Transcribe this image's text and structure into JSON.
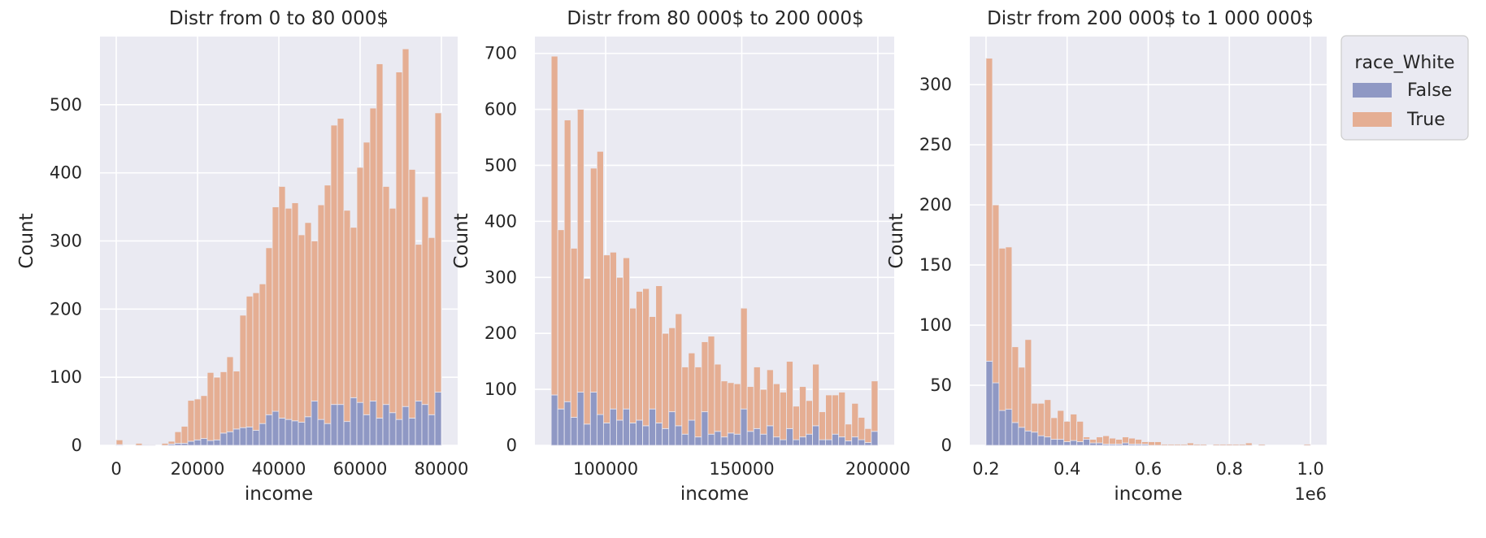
{
  "chart_data": [
    {
      "type": "bar",
      "title": "Distr from 0 to 80 000$",
      "xlabel": "income",
      "ylabel": "Count",
      "xlim": [
        -4000,
        84000
      ],
      "ylim": [
        0,
        600
      ],
      "xticks": [
        0,
        20000,
        40000,
        60000,
        80000
      ],
      "xticklabels": [
        "0",
        "20000",
        "40000",
        "60000",
        "80000"
      ],
      "yticks": [
        0,
        100,
        200,
        300,
        400,
        500
      ],
      "yticklabels": [
        "0",
        "100",
        "200",
        "300",
        "400",
        "500"
      ],
      "grid": true,
      "bin_start": 0,
      "bin_width": 1600,
      "series": [
        {
          "name": "False",
          "values": [
            1,
            0,
            0,
            0,
            1,
            0,
            0,
            0,
            2,
            3,
            3,
            6,
            8,
            10,
            7,
            8,
            18,
            20,
            24,
            26,
            27,
            22,
            32,
            45,
            50,
            40,
            38,
            36,
            34,
            42,
            65,
            38,
            32,
            60,
            60,
            35,
            70,
            63,
            45,
            65,
            40,
            60,
            48,
            38,
            57,
            40,
            65,
            60,
            45,
            78
          ]
        },
        {
          "name": "True",
          "values": [
            7,
            0,
            0,
            3,
            1,
            1,
            0,
            3,
            4,
            17,
            25,
            60,
            60,
            63,
            100,
            92,
            90,
            110,
            85,
            165,
            192,
            202,
            205,
            245,
            300,
            340,
            310,
            320,
            275,
            285,
            235,
            315,
            350,
            410,
            420,
            310,
            250,
            345,
            400,
            430,
            520,
            320,
            300,
            510,
            525,
            365,
            230,
            305,
            260,
            410
          ]
        }
      ]
    },
    {
      "type": "bar",
      "title": "Distr from 80 000$ to 200 000$",
      "xlabel": "income",
      "ylabel": "Count",
      "xlim": [
        74000,
        206000
      ],
      "ylim": [
        0,
        730
      ],
      "xticks": [
        100000,
        150000,
        200000
      ],
      "xticklabels": [
        "100000",
        "150000",
        "200000"
      ],
      "yticks": [
        0,
        100,
        200,
        300,
        400,
        500,
        600,
        700
      ],
      "yticklabels": [
        "0",
        "100",
        "200",
        "300",
        "400",
        "500",
        "600",
        "700"
      ],
      "grid": true,
      "bin_start": 80000,
      "bin_width": 2400,
      "series": [
        {
          "name": "False",
          "values": [
            90,
            65,
            78,
            50,
            95,
            38,
            95,
            55,
            40,
            65,
            45,
            65,
            40,
            45,
            35,
            65,
            40,
            30,
            60,
            35,
            20,
            45,
            15,
            60,
            20,
            25,
            15,
            22,
            20,
            65,
            25,
            30,
            20,
            35,
            15,
            10,
            30,
            10,
            15,
            20,
            35,
            10,
            10,
            20,
            15,
            8,
            15,
            10,
            5,
            25
          ]
        },
        {
          "name": "True",
          "values": [
            605,
            320,
            503,
            302,
            505,
            260,
            400,
            470,
            300,
            280,
            255,
            270,
            205,
            230,
            245,
            165,
            245,
            170,
            150,
            200,
            120,
            120,
            125,
            125,
            175,
            120,
            100,
            90,
            90,
            180,
            80,
            110,
            80,
            100,
            95,
            85,
            120,
            60,
            90,
            60,
            110,
            50,
            80,
            70,
            80,
            30,
            60,
            40,
            25,
            90
          ]
        }
      ]
    },
    {
      "type": "bar",
      "title": "Distr from 200 000$ to 1 000 000$",
      "xlabel": "income",
      "ylabel": "Count",
      "xlim": [
        160000,
        1040000
      ],
      "ylim": [
        0,
        340
      ],
      "xticks": [
        200000,
        400000,
        600000,
        800000,
        1000000
      ],
      "xticklabels": [
        "0.2",
        "0.4",
        "0.6",
        "0.8",
        "1.0"
      ],
      "offset_text": "1e6",
      "yticks": [
        0,
        50,
        100,
        150,
        200,
        250,
        300
      ],
      "yticklabels": [
        "0",
        "50",
        "100",
        "150",
        "200",
        "250",
        "300"
      ],
      "grid": true,
      "bin_start": 200000,
      "bin_width": 16000,
      "legend_title": "race_White",
      "legend_position": "outside-right",
      "series": [
        {
          "name": "False",
          "values": [
            70,
            52,
            29,
            30,
            19,
            15,
            12,
            11,
            8,
            7,
            5,
            5,
            3,
            4,
            3,
            5,
            2,
            2,
            1,
            1,
            1,
            2,
            1,
            1,
            1,
            0,
            0,
            0,
            0,
            0,
            0,
            0,
            0,
            0,
            0,
            0,
            0,
            0,
            0,
            0,
            0,
            0,
            0,
            0,
            0,
            0,
            0,
            0,
            0,
            0
          ]
        },
        {
          "name": "True",
          "values": [
            252,
            148,
            135,
            135,
            63,
            50,
            76,
            24,
            27,
            31,
            18,
            24,
            17,
            22,
            17,
            2,
            3,
            5,
            7,
            5,
            4,
            5,
            5,
            4,
            2,
            3,
            3,
            1,
            1,
            1,
            1,
            2,
            1,
            1,
            0,
            1,
            1,
            1,
            1,
            1,
            2,
            0,
            1,
            0,
            0,
            0,
            0,
            0,
            0,
            1
          ]
        }
      ],
      "colors": {
        "False": "#8e97c4",
        "True": "#e6ad93"
      }
    }
  ],
  "colors": {
    "axes_bg": "#eaeaf2",
    "grid": "#ffffff",
    "false_fill": "#8f98c4",
    "true_fill": "#e5ae93",
    "bar_edge": "#eaeaf2"
  }
}
